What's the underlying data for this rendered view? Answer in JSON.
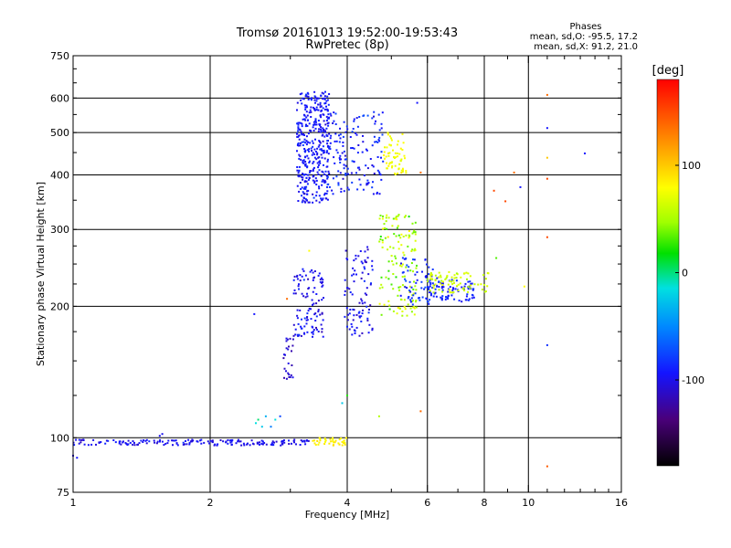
{
  "chart_data": {
    "type": "scatter",
    "title": "Tromsø 20161013 19:52:00-19:53:43",
    "subtitle": "RwPretec (8p)",
    "xlabel": "Frequency [MHz]",
    "ylabel": "Stationary phase Virtual Height [km]",
    "x_scale": "log",
    "y_scale": "log",
    "xlim": [
      1,
      16
    ],
    "ylim": [
      75,
      750
    ],
    "x_ticks": [
      1,
      2,
      4,
      6,
      8,
      10,
      16
    ],
    "x_tick_labels": [
      "1",
      "2",
      "4",
      "6",
      "8",
      "10",
      "16"
    ],
    "y_ticks": [
      75,
      100,
      200,
      300,
      400,
      500,
      600,
      750
    ],
    "y_tick_labels": [
      "75",
      "100",
      "200",
      "300",
      "400",
      "500",
      "600",
      "750"
    ],
    "grid": true,
    "stats_header": "Phases",
    "stats_lines": [
      "mean, sd,O: -95.5, 17.2",
      "mean, sd,X:  91.2, 21.0"
    ],
    "colorbar": {
      "label": "[deg]",
      "range": [
        -180,
        180
      ],
      "tick_values": [
        100,
        0,
        -100
      ],
      "tick_labels": [
        "100",
        "0",
        "-100"
      ]
    },
    "clusters": [
      {
        "id": "e-layer-trace",
        "xmin": 1.0,
        "xmax": 3.3,
        "ymin": 96,
        "ymax": 99,
        "count": 170,
        "phase": -105,
        "phase_sd": 10
      },
      {
        "id": "es-yellow",
        "xmin": 3.35,
        "xmax": 4.0,
        "ymin": 96,
        "ymax": 100,
        "count": 40,
        "phase": 105,
        "phase_sd": 8
      },
      {
        "id": "f1-rise",
        "xmin": 2.9,
        "xmax": 3.05,
        "ymin": 135,
        "ymax": 170,
        "count": 25,
        "phase": -115,
        "phase_sd": 10
      },
      {
        "id": "f1-cluster-a",
        "xmin": 3.05,
        "xmax": 3.55,
        "ymin": 170,
        "ymax": 245,
        "count": 110,
        "phase": -105,
        "phase_sd": 15
      },
      {
        "id": "f1-cluster-b",
        "xmin": 3.95,
        "xmax": 4.55,
        "ymin": 170,
        "ymax": 275,
        "count": 90,
        "phase": -105,
        "phase_sd": 15
      },
      {
        "id": "o-mode-mid",
        "xmin": 4.7,
        "xmax": 5.7,
        "ymin": 190,
        "ymax": 325,
        "count": 140,
        "phase": 50,
        "phase_sd": 45
      },
      {
        "id": "x-mode-mid",
        "xmin": 5.2,
        "xmax": 6.2,
        "ymin": 200,
        "ymax": 260,
        "count": 70,
        "phase": -90,
        "phase_sd": 15
      },
      {
        "id": "f2-tail-blue",
        "xmin": 6.0,
        "xmax": 7.6,
        "ymin": 205,
        "ymax": 230,
        "count": 80,
        "phase": -95,
        "phase_sd": 10
      },
      {
        "id": "f2-tail-yellow",
        "xmin": 6.0,
        "xmax": 8.2,
        "ymin": 215,
        "ymax": 240,
        "count": 80,
        "phase": 70,
        "phase_sd": 20
      },
      {
        "id": "f-upper-dense",
        "xmin": 3.1,
        "xmax": 3.65,
        "ymin": 345,
        "ymax": 620,
        "count": 380,
        "phase": -100,
        "phase_sd": 12
      },
      {
        "id": "f-upper-b",
        "xmin": 3.6,
        "xmax": 4.8,
        "ymin": 360,
        "ymax": 560,
        "count": 160,
        "phase": -95,
        "phase_sd": 15
      },
      {
        "id": "f-upper-yellow",
        "xmin": 4.8,
        "xmax": 5.4,
        "ymin": 400,
        "ymax": 500,
        "count": 60,
        "phase": 95,
        "phase_sd": 12
      }
    ],
    "points": [
      {
        "x": 1.0,
        "y": 91,
        "phase": -110
      },
      {
        "x": 1.02,
        "y": 90,
        "phase": -100
      },
      {
        "x": 1.55,
        "y": 101,
        "phase": -105
      },
      {
        "x": 1.57,
        "y": 102,
        "phase": -105
      },
      {
        "x": 2.5,
        "y": 192,
        "phase": -100
      },
      {
        "x": 2.52,
        "y": 108,
        "phase": -20
      },
      {
        "x": 2.55,
        "y": 110,
        "phase": -10
      },
      {
        "x": 2.6,
        "y": 106,
        "phase": -30
      },
      {
        "x": 2.65,
        "y": 112,
        "phase": -40
      },
      {
        "x": 2.72,
        "y": 106,
        "phase": -60
      },
      {
        "x": 2.78,
        "y": 110,
        "phase": -20
      },
      {
        "x": 2.85,
        "y": 112,
        "phase": -80
      },
      {
        "x": 2.95,
        "y": 208,
        "phase": 150
      },
      {
        "x": 3.3,
        "y": 268,
        "phase": 100
      },
      {
        "x": 3.9,
        "y": 120,
        "phase": -30
      },
      {
        "x": 4.0,
        "y": 125,
        "phase": 10
      },
      {
        "x": 4.7,
        "y": 112,
        "phase": 50
      },
      {
        "x": 5.7,
        "y": 585,
        "phase": -100
      },
      {
        "x": 5.8,
        "y": 115,
        "phase": 150
      },
      {
        "x": 5.8,
        "y": 405,
        "phase": 150
      },
      {
        "x": 6.3,
        "y": 232,
        "phase": -100
      },
      {
        "x": 8.5,
        "y": 258,
        "phase": 20
      },
      {
        "x": 8.4,
        "y": 368,
        "phase": 160
      },
      {
        "x": 8.9,
        "y": 348,
        "phase": 160
      },
      {
        "x": 9.3,
        "y": 405,
        "phase": 150
      },
      {
        "x": 9.6,
        "y": 375,
        "phase": -100
      },
      {
        "x": 9.8,
        "y": 222,
        "phase": 100
      },
      {
        "x": 11.0,
        "y": 610,
        "phase": 150
      },
      {
        "x": 11.0,
        "y": 512,
        "phase": -100
      },
      {
        "x": 11.0,
        "y": 438,
        "phase": 120
      },
      {
        "x": 11.0,
        "y": 392,
        "phase": 160
      },
      {
        "x": 11.0,
        "y": 288,
        "phase": 160
      },
      {
        "x": 11.0,
        "y": 163,
        "phase": -90
      },
      {
        "x": 11.0,
        "y": 86,
        "phase": 155
      },
      {
        "x": 13.3,
        "y": 448,
        "phase": -100
      }
    ]
  }
}
